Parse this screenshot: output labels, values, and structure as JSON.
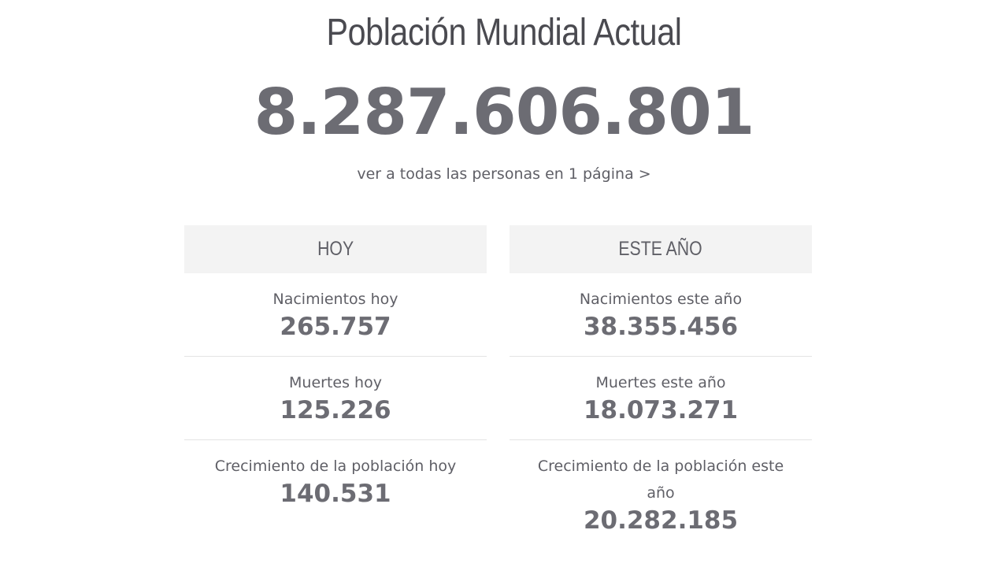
{
  "header": {
    "title": "Población Mundial Actual",
    "population": "8.287.606.801",
    "link_text": "ver a todas las personas en 1 página >"
  },
  "today": {
    "heading": "HOY",
    "rows": [
      {
        "label": "Nacimientos hoy",
        "value": "265.757"
      },
      {
        "label": "Muertes hoy",
        "value": "125.226"
      },
      {
        "label": "Crecimiento de la población hoy",
        "value": "140.531"
      }
    ]
  },
  "this_year": {
    "heading": "ESTE AÑO",
    "rows": [
      {
        "label": "Nacimientos este año",
        "value": "38.355.456"
      },
      {
        "label": "Muertes este año",
        "value": "18.073.271"
      },
      {
        "label": "Crecimiento de la población este año",
        "value": "20.282.185"
      }
    ]
  }
}
